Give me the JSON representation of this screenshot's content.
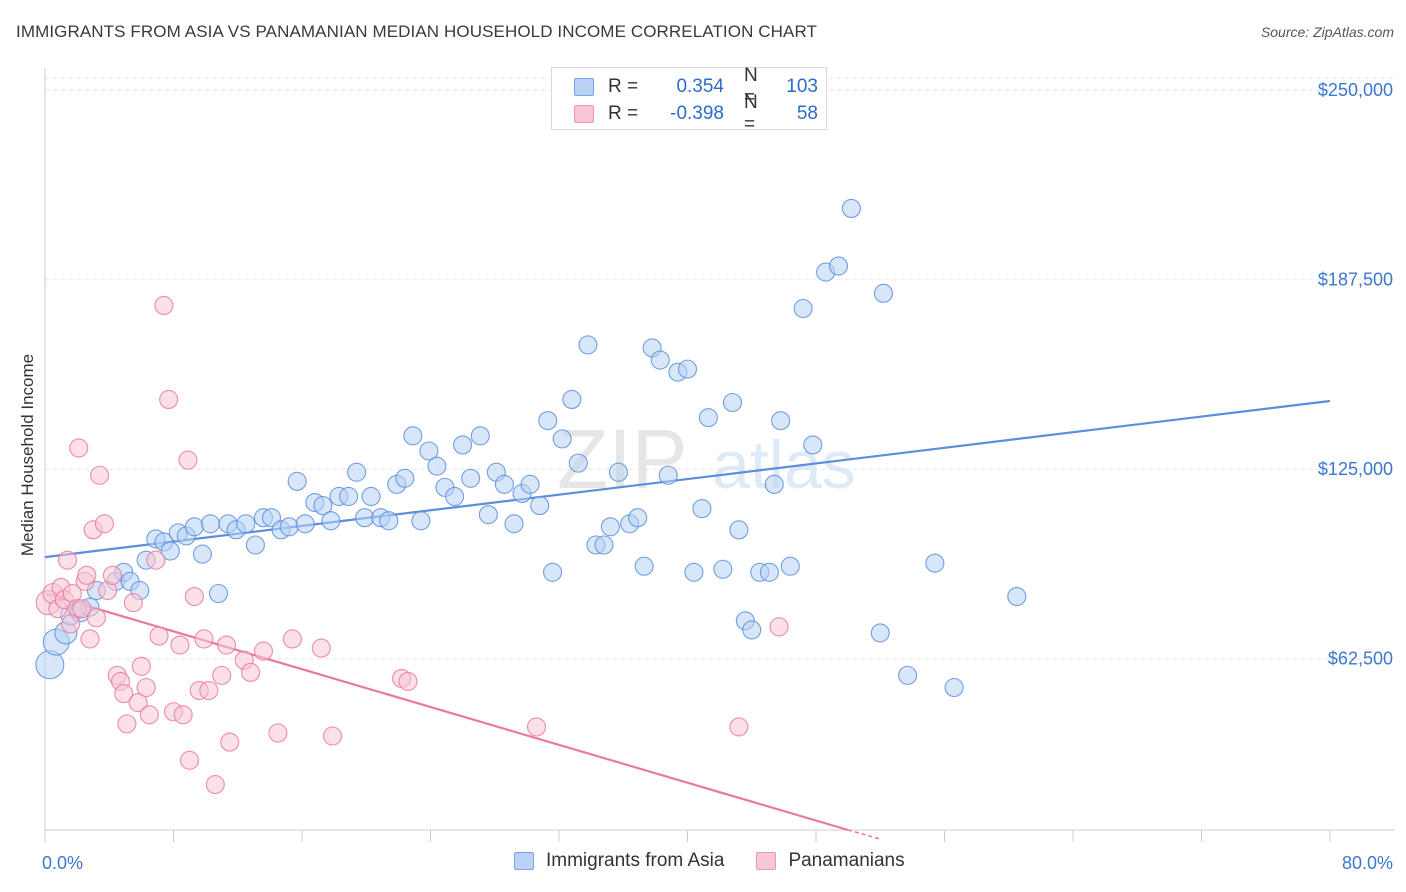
{
  "title": "IMMIGRANTS FROM ASIA VS PANAMANIAN MEDIAN HOUSEHOLD INCOME CORRELATION CHART",
  "source": "Source: ZipAtlas.com",
  "watermark": {
    "zip": "ZIP",
    "atlas": "atlas"
  },
  "legend_top": [
    {
      "r_label": "R =",
      "r_value": "0.354",
      "n_label": "N =",
      "n_value": "103",
      "color": "#5a8fdc"
    },
    {
      "r_label": "R =",
      "r_value": "-0.398",
      "n_label": "N =",
      "n_value": "58",
      "color": "#e9799d"
    }
  ],
  "chart_data": {
    "type": "scatter",
    "title": "IMMIGRANTS FROM ASIA VS PANAMANIAN MEDIAN HOUSEHOLD INCOME CORRELATION CHART",
    "xlabel": "",
    "ylabel": "Median Household Income",
    "xlim": [
      0,
      80
    ],
    "ylim": [
      6000,
      256000
    ],
    "x_tick_labels": [
      "0.0%",
      "80.0%"
    ],
    "y_ticks": [
      62500,
      125000,
      187500,
      250000
    ],
    "y_tick_labels": [
      "$62,500",
      "$125,000",
      "$187,500",
      "$250,000"
    ],
    "grid": true,
    "legend_placement": "bottom",
    "series": [
      {
        "name": "Immigrants from Asia",
        "color": "#5a8fdc",
        "fill": "#b8d1f5",
        "trend": {
          "x": [
            0,
            80
          ],
          "y": [
            96000,
            147500
          ]
        },
        "points": [
          [
            0.3,
            60500,
            14
          ],
          [
            0.7,
            68000,
            13
          ],
          [
            1.3,
            71000,
            11
          ],
          [
            1.6,
            77000,
            10
          ],
          [
            2.2,
            78000,
            10
          ],
          [
            2.8,
            79500,
            9
          ],
          [
            3.2,
            85000,
            9
          ],
          [
            4.4,
            88000,
            9
          ],
          [
            4.9,
            91000,
            9
          ],
          [
            5.3,
            88000,
            9
          ],
          [
            5.9,
            85000,
            9
          ],
          [
            6.3,
            95000,
            9
          ],
          [
            6.9,
            102000,
            9
          ],
          [
            7.4,
            101000,
            9
          ],
          [
            7.8,
            98000,
            9
          ],
          [
            8.3,
            104000,
            9
          ],
          [
            8.8,
            103000,
            9
          ],
          [
            9.3,
            106000,
            9
          ],
          [
            9.8,
            97000,
            9
          ],
          [
            10.3,
            107000,
            9
          ],
          [
            10.8,
            84000,
            9
          ],
          [
            11.4,
            107000,
            9
          ],
          [
            11.9,
            105000,
            9
          ],
          [
            12.5,
            107000,
            9
          ],
          [
            13.1,
            100000,
            9
          ],
          [
            13.6,
            109000,
            9
          ],
          [
            14.1,
            109000,
            9
          ],
          [
            14.7,
            105000,
            9
          ],
          [
            15.2,
            106000,
            9
          ],
          [
            15.7,
            121000,
            9
          ],
          [
            16.2,
            107000,
            9
          ],
          [
            16.8,
            114000,
            9
          ],
          [
            17.3,
            113000,
            9
          ],
          [
            17.8,
            108000,
            9
          ],
          [
            18.3,
            116000,
            9
          ],
          [
            18.9,
            116000,
            9
          ],
          [
            19.4,
            124000,
            9
          ],
          [
            19.9,
            109000,
            9
          ],
          [
            20.3,
            116000,
            9
          ],
          [
            20.9,
            109000,
            9
          ],
          [
            21.4,
            108000,
            9
          ],
          [
            21.9,
            120000,
            9
          ],
          [
            22.4,
            122000,
            9
          ],
          [
            22.9,
            136000,
            9
          ],
          [
            23.4,
            108000,
            9
          ],
          [
            23.9,
            131000,
            9
          ],
          [
            24.4,
            126000,
            9
          ],
          [
            24.9,
            119000,
            9
          ],
          [
            25.5,
            116000,
            9
          ],
          [
            26.0,
            133000,
            9
          ],
          [
            26.5,
            122000,
            9
          ],
          [
            27.1,
            136000,
            9
          ],
          [
            27.6,
            110000,
            9
          ],
          [
            28.1,
            124000,
            9
          ],
          [
            28.6,
            120000,
            9
          ],
          [
            29.2,
            107000,
            9
          ],
          [
            29.7,
            117000,
            9
          ],
          [
            30.2,
            120000,
            9
          ],
          [
            30.8,
            113000,
            9
          ],
          [
            31.3,
            141000,
            9
          ],
          [
            31.6,
            91000,
            9
          ],
          [
            32.2,
            135000,
            9
          ],
          [
            32.8,
            148000,
            9
          ],
          [
            33.2,
            127000,
            9
          ],
          [
            33.8,
            166000,
            9
          ],
          [
            34.3,
            100000,
            9
          ],
          [
            34.8,
            100000,
            9
          ],
          [
            35.2,
            106000,
            9
          ],
          [
            35.7,
            124000,
            9
          ],
          [
            36.4,
            107000,
            9
          ],
          [
            36.9,
            109000,
            9
          ],
          [
            37.3,
            93000,
            9
          ],
          [
            37.8,
            165000,
            9
          ],
          [
            38.3,
            161000,
            9
          ],
          [
            38.8,
            123000,
            9
          ],
          [
            39.4,
            157000,
            9
          ],
          [
            40.0,
            158000,
            9
          ],
          [
            40.4,
            91000,
            9
          ],
          [
            40.9,
            112000,
            9
          ],
          [
            41.3,
            142000,
            9
          ],
          [
            42.2,
            92000,
            9
          ],
          [
            42.8,
            147000,
            9
          ],
          [
            43.2,
            105000,
            9
          ],
          [
            43.6,
            75000,
            9
          ],
          [
            44.0,
            72000,
            9
          ],
          [
            44.5,
            91000,
            9
          ],
          [
            45.1,
            91000,
            9
          ],
          [
            45.4,
            120000,
            9
          ],
          [
            45.8,
            141000,
            9
          ],
          [
            46.4,
            93000,
            9
          ],
          [
            47.2,
            178000,
            9
          ],
          [
            47.8,
            133000,
            9
          ],
          [
            48.6,
            190000,
            9
          ],
          [
            49.4,
            192000,
            9
          ],
          [
            50.2,
            211000,
            9
          ],
          [
            52.0,
            71000,
            9
          ],
          [
            52.2,
            183000,
            9
          ],
          [
            53.7,
            57000,
            9
          ],
          [
            55.4,
            94000,
            9
          ],
          [
            56.6,
            53000,
            9
          ],
          [
            60.5,
            83000,
            9
          ]
        ]
      },
      {
        "name": "Panamanians",
        "color": "#e9799d",
        "fill": "#f8c6d6",
        "trend": {
          "x": [
            0,
            50
          ],
          "y": [
            84000,
            6000
          ]
        },
        "trend_dashed": {
          "x": [
            50,
            52
          ],
          "y": [
            6000,
            3000
          ]
        },
        "points": [
          [
            0.2,
            81000,
            12
          ],
          [
            0.5,
            84000,
            10
          ],
          [
            0.8,
            79000,
            9
          ],
          [
            1.0,
            86000,
            9
          ],
          [
            1.2,
            82000,
            9
          ],
          [
            1.4,
            95000,
            9
          ],
          [
            1.7,
            84000,
            9
          ],
          [
            2.0,
            79000,
            9
          ],
          [
            2.3,
            79000,
            9
          ],
          [
            2.1,
            132000,
            9
          ],
          [
            2.5,
            88000,
            9
          ],
          [
            2.8,
            69000,
            9
          ],
          [
            2.6,
            90000,
            9
          ],
          [
            3.0,
            105000,
            9
          ],
          [
            3.2,
            76000,
            9
          ],
          [
            3.4,
            123000,
            9
          ],
          [
            3.7,
            107000,
            9
          ],
          [
            3.9,
            85000,
            9
          ],
          [
            4.2,
            90000,
            9
          ],
          [
            4.5,
            57000,
            9
          ],
          [
            4.7,
            55000,
            9
          ],
          [
            4.9,
            51000,
            9
          ],
          [
            5.1,
            41000,
            9
          ],
          [
            5.5,
            81000,
            9
          ],
          [
            5.8,
            48000,
            9
          ],
          [
            6.0,
            60000,
            9
          ],
          [
            6.3,
            53000,
            9
          ],
          [
            6.5,
            44000,
            9
          ],
          [
            6.9,
            95000,
            9
          ],
          [
            7.1,
            70000,
            9
          ],
          [
            7.4,
            179000,
            9
          ],
          [
            7.7,
            148000,
            9
          ],
          [
            8.0,
            45000,
            9
          ],
          [
            8.4,
            67000,
            9
          ],
          [
            8.6,
            44000,
            9
          ],
          [
            8.9,
            128000,
            9
          ],
          [
            9.0,
            29000,
            9
          ],
          [
            9.3,
            83000,
            9
          ],
          [
            9.6,
            52000,
            9
          ],
          [
            9.9,
            69000,
            9
          ],
          [
            10.2,
            52000,
            9
          ],
          [
            10.6,
            21000,
            9
          ],
          [
            11.0,
            57000,
            9
          ],
          [
            11.3,
            67000,
            9
          ],
          [
            11.5,
            35000,
            9
          ],
          [
            12.4,
            62000,
            9
          ],
          [
            12.8,
            58000,
            9
          ],
          [
            13.6,
            65000,
            9
          ],
          [
            14.5,
            38000,
            9
          ],
          [
            15.4,
            69000,
            9
          ],
          [
            17.2,
            66000,
            9
          ],
          [
            17.9,
            37000,
            9
          ],
          [
            22.2,
            56000,
            9
          ],
          [
            30.6,
            40000,
            9
          ],
          [
            43.2,
            40000,
            9
          ],
          [
            45.7,
            73000,
            9
          ],
          [
            22.6,
            55000,
            9
          ],
          [
            1.6,
            74000,
            9
          ]
        ]
      }
    ]
  }
}
